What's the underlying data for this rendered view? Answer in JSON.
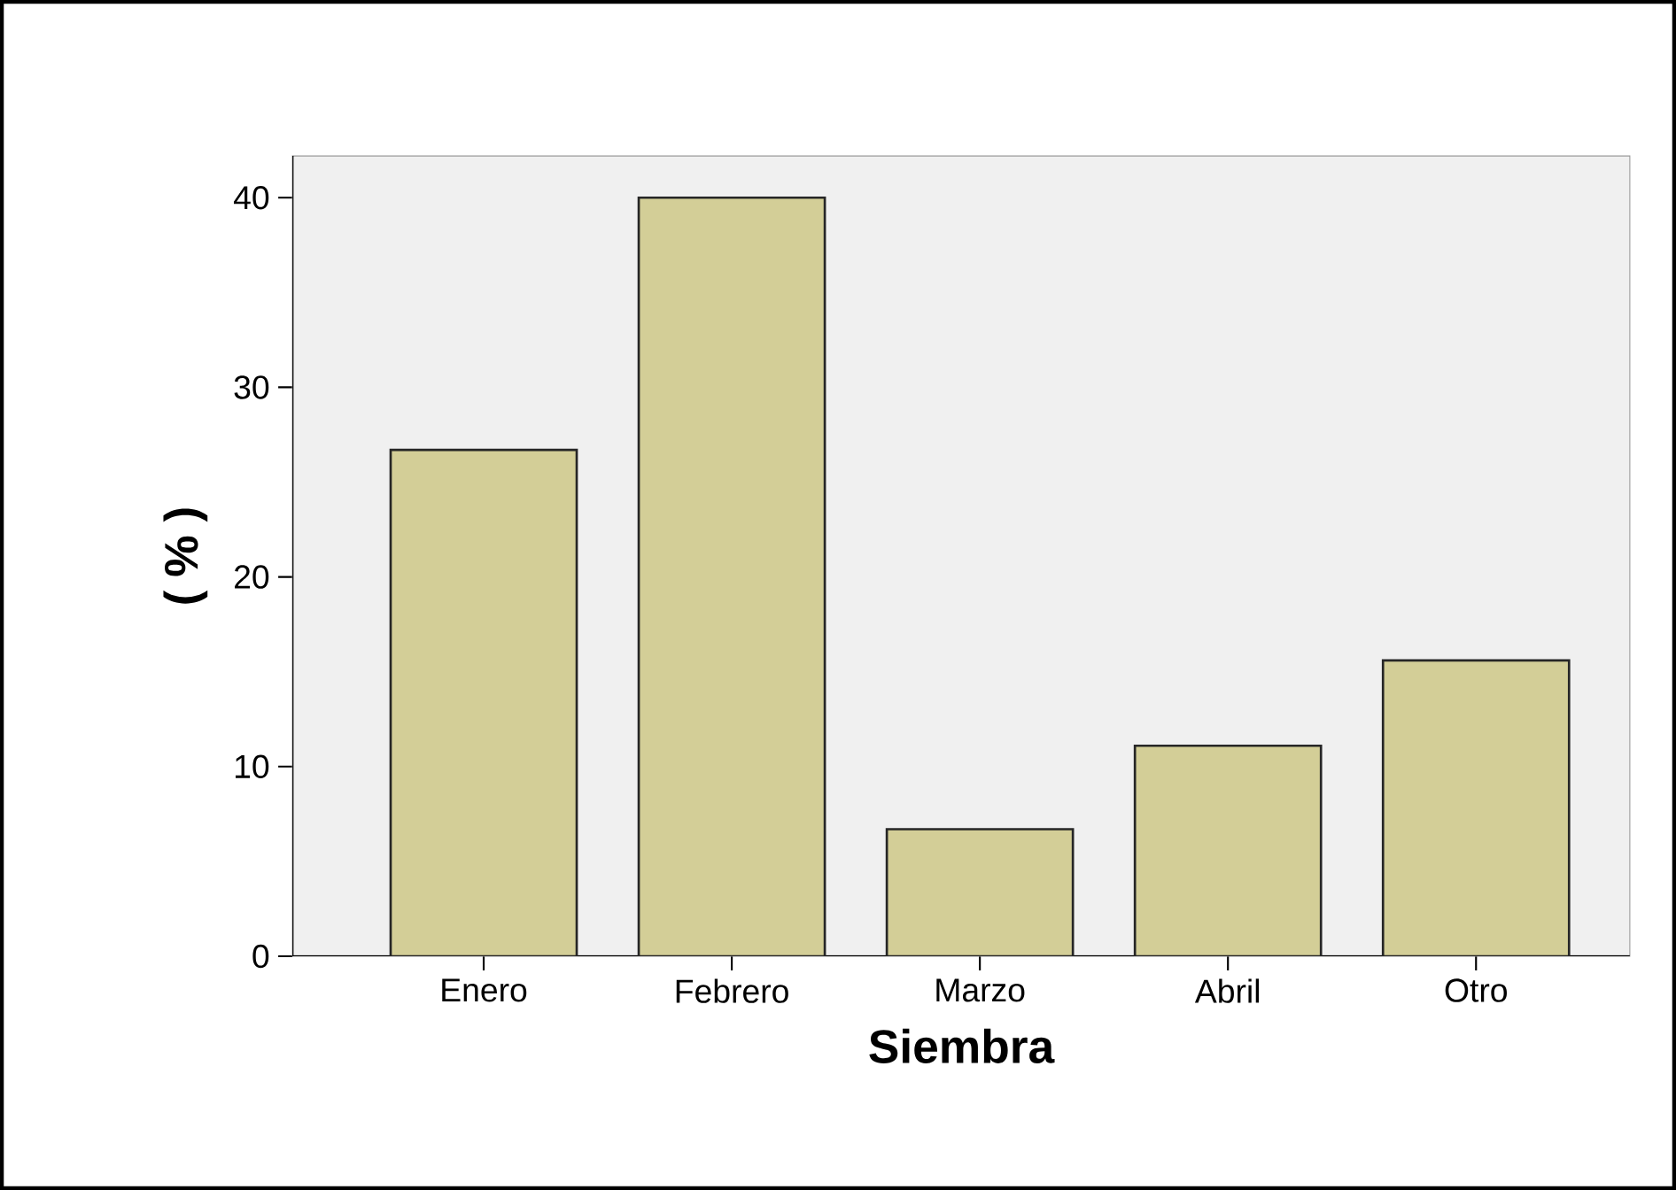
{
  "chart_data": {
    "type": "bar",
    "xlabel": "Siembra",
    "ylabel": "( % )",
    "categories": [
      "Enero",
      "Febrero",
      "Marzo",
      "Abril",
      "Otro"
    ],
    "values": [
      26.7,
      40,
      6.7,
      11.1,
      15.6
    ],
    "color": "#d3ce97",
    "ylim": [
      0,
      42.2
    ],
    "yticks": [
      0,
      10,
      20,
      30,
      40
    ],
    "grid": false
  }
}
